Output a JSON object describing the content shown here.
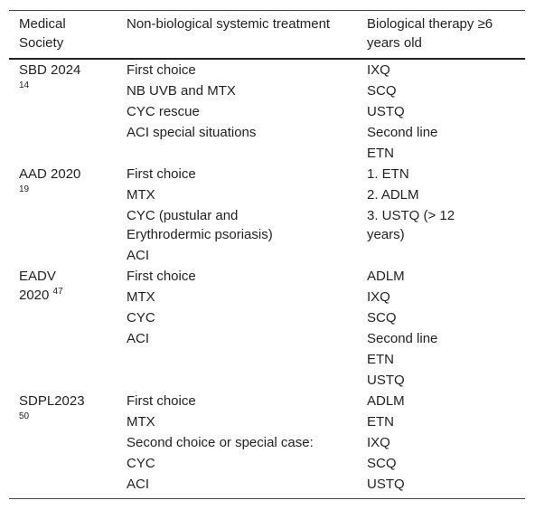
{
  "table": {
    "headers": [
      "Medical Society",
      "Non-biological systemic treatment",
      "Biological therapy ≥6 years old"
    ],
    "groups": [
      {
        "society": "SBD 2024",
        "ref": "14",
        "non_biological": [
          "First choice",
          "NB UVB and MTX",
          "CYC rescue",
          "ACI special situations"
        ],
        "biological": [
          "IXQ",
          "SCQ",
          "USTQ",
          "Second line",
          "ETN"
        ]
      },
      {
        "society": "AAD 2020",
        "ref": "19",
        "non_biological": [
          "First choice",
          "MTX",
          [
            "CYC (pustular and",
            "Erythrodermic psoriasis)"
          ],
          "ACI"
        ],
        "biological": [
          "1. ETN",
          "2. ADLM",
          [
            "3. USTQ (> 12",
            "years)"
          ]
        ]
      },
      {
        "society": "EADV 2020",
        "ref": "47",
        "non_biological": [
          "First choice",
          "MTX",
          "CYC",
          "ACI"
        ],
        "biological": [
          "ADLM",
          "IXQ",
          "SCQ",
          "Second line",
          "ETN",
          "USTQ"
        ]
      },
      {
        "society": "SDPL2023",
        "ref": "50",
        "non_biological": [
          "First choice",
          "MTX",
          "Second choice or special case:",
          "CYC",
          "ACI"
        ],
        "biological": [
          "ADLM",
          "ETN",
          "IXQ",
          "SCQ",
          "USTQ"
        ]
      }
    ]
  }
}
